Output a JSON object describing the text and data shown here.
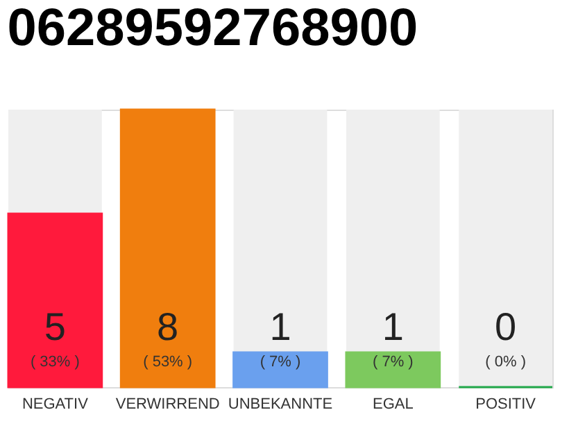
{
  "chart_data": {
    "type": "bar",
    "title": "06289592768900",
    "categories": [
      "NEGATIV",
      "VERWIRREND",
      "UNBEKANNTE",
      "EGAL",
      "POSITIV"
    ],
    "values": [
      5,
      8,
      1,
      1,
      0
    ],
    "colors": [
      "#ff1a3c",
      "#f07e0e",
      "#6aa0ee",
      "#7dc95e",
      "#22a94a"
    ],
    "ylim": [
      0,
      8
    ],
    "tick_labels": "x",
    "data_labels": true,
    "bands": [
      {
        "axis": "y",
        "from": 0,
        "to": 8,
        "color": "#efefef"
      }
    ],
    "annotations": [
      "( 33% )",
      "( 53% )",
      "( 7% )",
      "( 7% )",
      "( 0% )"
    ]
  }
}
